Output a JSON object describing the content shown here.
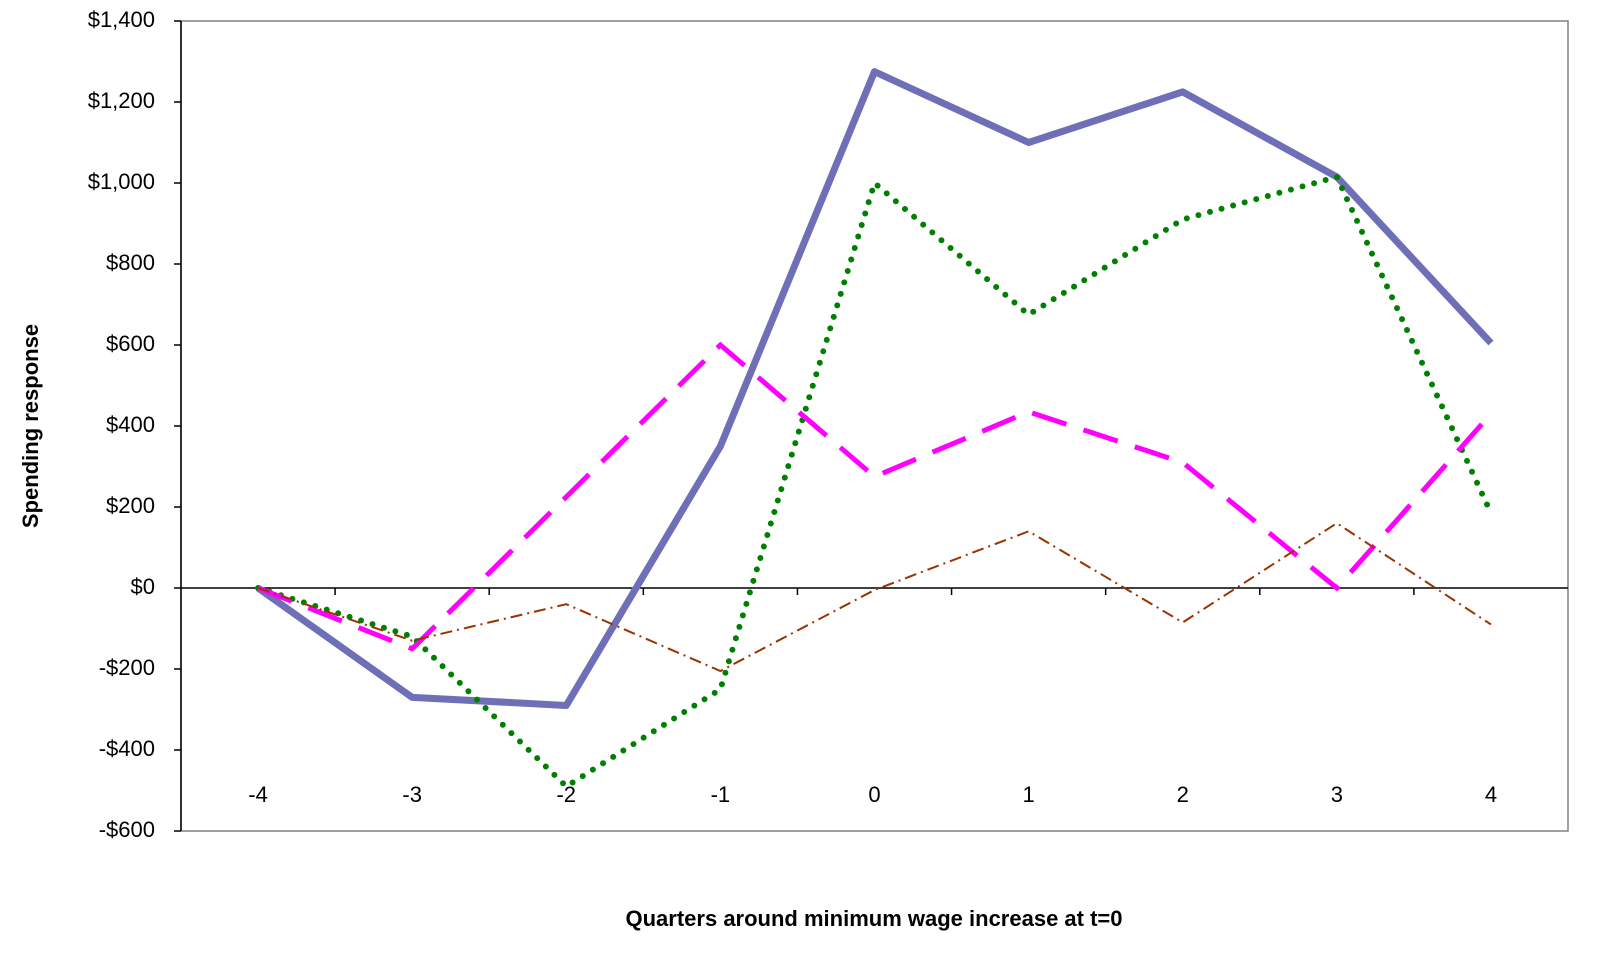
{
  "chart_data": {
    "type": "line",
    "x_label": "Quarters around minimum wage increase at t=0",
    "y_label": "Spending response",
    "categories": [
      "-4",
      "-3",
      "-2",
      "-1",
      "0",
      "1",
      "2",
      "3",
      "4"
    ],
    "series": [
      {
        "color": "#6f6fb8",
        "style": "solid",
        "values": [
          0,
          -270,
          -290,
          350,
          1275,
          1100,
          1225,
          1015,
          605
        ]
      },
      {
        "color": "#008000",
        "style": "dotted",
        "values": [
          0,
          -120,
          -490,
          -250,
          1000,
          675,
          910,
          1015,
          185
        ]
      },
      {
        "color": "#ff00ff",
        "style": "dashed",
        "values": [
          0,
          -150,
          225,
          600,
          275,
          435,
          310,
          0,
          430
        ]
      },
      {
        "color": "#993300",
        "style": "dashdot",
        "values": [
          0,
          -130,
          -40,
          -205,
          -5,
          140,
          -85,
          160,
          -90
        ]
      }
    ],
    "ylim": [
      -600,
      1400
    ],
    "yticks": [
      {
        "value": -600,
        "label": "-$600"
      },
      {
        "value": -400,
        "label": "-$400"
      },
      {
        "value": -200,
        "label": "-$200"
      },
      {
        "value": 0,
        "label": "$0"
      },
      {
        "value": 200,
        "label": "$200"
      },
      {
        "value": 400,
        "label": "$400"
      },
      {
        "value": 600,
        "label": "$600"
      },
      {
        "value": 800,
        "label": "$800"
      },
      {
        "value": 1000,
        "label": "$1,000"
      },
      {
        "value": 1200,
        "label": "$1,200"
      },
      {
        "value": 1400,
        "label": "$1,400"
      }
    ],
    "grid": false
  }
}
